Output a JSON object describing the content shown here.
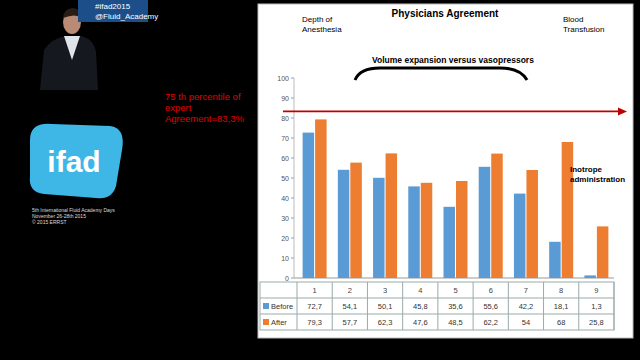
{
  "chart_data": {
    "type": "bar",
    "title": "Physicians Agreement",
    "categories": [
      "1",
      "2",
      "3",
      "4",
      "5",
      "6",
      "7",
      "8",
      "9"
    ],
    "series": [
      {
        "name": "Before",
        "color": "#5b9bd5",
        "values": [
          72.7,
          54.1,
          50.1,
          45.8,
          35.6,
          55.6,
          42.2,
          18.1,
          1.3
        ],
        "value_labels": [
          "72,7",
          "54,1",
          "50,1",
          "45,8",
          "35,6",
          "55,6",
          "42,2",
          "18,1",
          "1,3"
        ]
      },
      {
        "name": "After",
        "color": "#ed7d31",
        "values": [
          79.3,
          57.7,
          62.3,
          47.6,
          48.5,
          62.2,
          54,
          68,
          25.8
        ],
        "value_labels": [
          "79,3",
          "57,7",
          "62,3",
          "47,6",
          "48,5",
          "62,2",
          "54",
          "68",
          "25,8"
        ]
      }
    ],
    "ylim": [
      0,
      100
    ],
    "yticks": [
      0,
      10,
      20,
      30,
      40,
      50,
      60,
      70,
      80,
      90,
      100
    ],
    "grid": false,
    "reference_line": {
      "value": 83.3,
      "color": "#c00000",
      "label": [
        "75 th percentile of",
        "expert",
        "Agreement=83,3%"
      ]
    },
    "annotations": [
      {
        "lines": [
          "Depth of",
          "Anesthesia"
        ]
      },
      {
        "lines": [
          "Volume expansion versus vasopressors"
        ]
      },
      {
        "lines": [
          "Blood",
          "Transfusion"
        ]
      },
      {
        "lines": [
          "Inotrope",
          "administration"
        ]
      }
    ]
  },
  "page": {
    "twitter": [
      "#ifad2015",
      "@Fluid_Academy"
    ],
    "logo": "ifad",
    "event": [
      "5th International Fluid Academy Days",
      "November 26-28th 2015",
      "© 2015 ERRST"
    ]
  }
}
